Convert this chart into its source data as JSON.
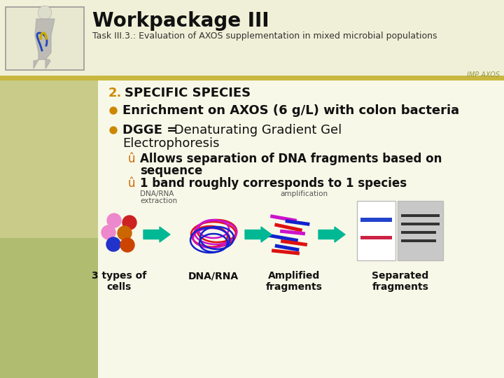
{
  "title": "Workpackage III",
  "subtitle": "Task III.3.: Evaluation of AXOS supplementation in mixed microbial populations",
  "watermark": "IMP AXOS",
  "bg_left_top": "#c8cc88",
  "bg_left_bottom": "#b8c878",
  "bg_header": "#f0f0d8",
  "bg_content": "#f8f8e8",
  "gold_bar_color": "#c8b840",
  "bullet_number": "2.",
  "bullet_number_color": "#cc8800",
  "section_title": "SPECIFIC SPECIES",
  "bullet_dot_color": "#cc8800",
  "arrow_color": "#00b894",
  "cell_colors": [
    "#ee88cc",
    "#cc2222",
    "#ee88cc",
    "#cc6600",
    "#2222cc",
    "#cc4400"
  ],
  "dna_colors_red": "#dd1111",
  "dna_colors_purple": "#cc11cc",
  "dna_colors_blue": "#1122cc",
  "frag_colors": [
    "#dd1111",
    "#cc11cc",
    "#1122cc"
  ],
  "gel_left_band1_color": "#2244cc",
  "gel_left_band2_color": "#cc1144",
  "gel_right_bands_color": "#333333",
  "label_font_size": 10,
  "label_bold": true
}
